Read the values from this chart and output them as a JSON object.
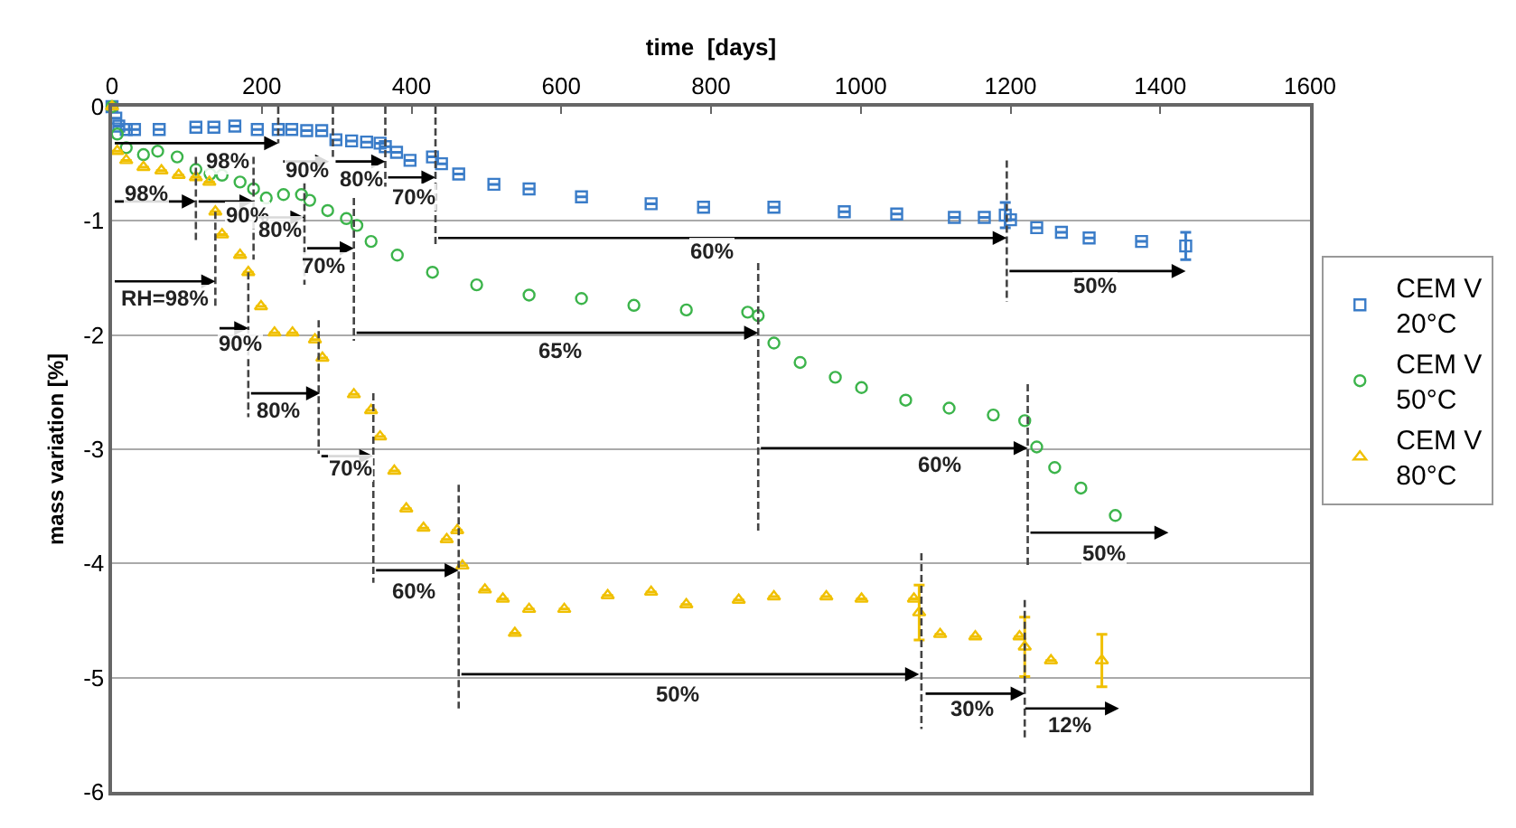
{
  "chart_data": {
    "type": "scatter",
    "xlabel": "time  [days]",
    "ylabel": "mass variation [%]",
    "xlim": [
      0,
      1600
    ],
    "xticks": [
      0,
      200,
      400,
      600,
      800,
      1000,
      1200,
      1400,
      1600
    ],
    "ylim": [
      -6,
      0
    ],
    "yticks": [
      -6,
      -5,
      -4,
      -3,
      -2,
      -1,
      0
    ],
    "grid": "y",
    "legend": "right",
    "series": [
      {
        "name": "CEM V\n20°C",
        "marker": "square",
        "color": "#3a7cc8",
        "x": [
          0,
          5,
          9,
          19,
          30,
          63,
          112,
          136,
          164,
          194,
          222,
          240,
          260,
          280,
          299,
          320,
          340,
          358,
          365,
          380,
          398,
          428,
          440,
          463,
          510,
          557,
          627,
          720,
          790,
          884,
          978,
          1048,
          1125,
          1165,
          1193,
          1200,
          1235,
          1268,
          1305,
          1375,
          1434
        ],
        "values": [
          0,
          -0.1,
          -0.17,
          -0.2,
          -0.2,
          -0.2,
          -0.18,
          -0.18,
          -0.17,
          -0.2,
          -0.2,
          -0.2,
          -0.21,
          -0.21,
          -0.29,
          -0.3,
          -0.31,
          -0.32,
          -0.35,
          -0.4,
          -0.47,
          -0.44,
          -0.5,
          -0.59,
          -0.68,
          -0.72,
          -0.79,
          -0.85,
          -0.88,
          -0.88,
          -0.92,
          -0.94,
          -0.97,
          -0.97,
          -0.95,
          -0.99,
          -1.06,
          -1.1,
          -1.15,
          -1.18,
          -1.22
        ],
        "errors": [
          null,
          null,
          null,
          null,
          null,
          null,
          null,
          null,
          null,
          null,
          null,
          null,
          null,
          null,
          null,
          null,
          null,
          null,
          null,
          null,
          null,
          null,
          null,
          null,
          null,
          null,
          null,
          null,
          null,
          null,
          null,
          null,
          null,
          null,
          0.11,
          null,
          null,
          null,
          null,
          null,
          0.12
        ]
      },
      {
        "name": "CEM V\n50°C",
        "marker": "circle",
        "color": "#3cb44b",
        "x": [
          0,
          7,
          19,
          42,
          61,
          87,
          112,
          131,
          147,
          171,
          189,
          206,
          229,
          253,
          264,
          288,
          313,
          327,
          346,
          381,
          428,
          487,
          557,
          627,
          697,
          767,
          849,
          863,
          884,
          919,
          966,
          1001,
          1060,
          1118,
          1177,
          1219,
          1235,
          1259,
          1294,
          1340
        ],
        "values": [
          0,
          -0.24,
          -0.36,
          -0.42,
          -0.39,
          -0.44,
          -0.55,
          -0.59,
          -0.6,
          -0.66,
          -0.72,
          -0.8,
          -0.77,
          -0.77,
          -0.82,
          -0.91,
          -0.98,
          -1.04,
          -1.18,
          -1.3,
          -1.45,
          -1.56,
          -1.65,
          -1.68,
          -1.74,
          -1.78,
          -1.8,
          -1.83,
          -2.07,
          -2.24,
          -2.37,
          -2.46,
          -2.57,
          -2.64,
          -2.7,
          -2.75,
          -2.98,
          -3.16,
          -3.34,
          -3.58
        ]
      },
      {
        "name": "CEM V\n80°C",
        "marker": "triangle",
        "color": "#f0c000",
        "x": [
          0,
          7,
          19,
          42,
          66,
          89,
          112,
          130,
          138,
          147,
          171,
          182,
          199,
          217,
          241,
          271,
          281,
          323,
          346,
          358,
          377,
          393,
          416,
          447,
          461,
          468,
          498,
          522,
          538,
          557,
          604,
          662,
          720,
          767,
          837,
          884,
          954,
          1001,
          1071,
          1078,
          1106,
          1153,
          1212,
          1219,
          1254,
          1322
        ],
        "values": [
          0,
          -0.39,
          -0.47,
          -0.53,
          -0.56,
          -0.6,
          -0.62,
          -0.66,
          -0.92,
          -1.12,
          -1.3,
          -1.45,
          -1.75,
          -1.98,
          -1.98,
          -2.04,
          -2.2,
          -2.52,
          -2.66,
          -2.89,
          -3.19,
          -3.52,
          -3.69,
          -3.79,
          -3.71,
          -4.02,
          -4.23,
          -4.31,
          -4.61,
          -4.4,
          -4.4,
          -4.28,
          -4.25,
          -4.36,
          -4.32,
          -4.29,
          -4.29,
          -4.31,
          -4.31,
          -4.43,
          -4.62,
          -4.64,
          -4.64,
          -4.73,
          -4.85,
          -4.85
        ],
        "errors": [
          null,
          null,
          null,
          null,
          null,
          null,
          null,
          null,
          null,
          null,
          null,
          null,
          null,
          null,
          null,
          null,
          null,
          null,
          null,
          null,
          null,
          null,
          null,
          null,
          null,
          null,
          null,
          null,
          null,
          null,
          null,
          null,
          null,
          null,
          null,
          null,
          null,
          null,
          null,
          0.24,
          null,
          null,
          null,
          0.26,
          null,
          0.23
        ]
      },
      {
        "type": "line",
        "line_style": "dashed",
        "color": "#444444",
        "x": [
          222,
          222
        ],
        "values": [
          0,
          -0.32
        ]
      },
      {
        "type": "line",
        "line_style": "dashed",
        "color": "#444444",
        "x": [
          295,
          295
        ],
        "values": [
          0,
          -0.44
        ]
      },
      {
        "type": "line",
        "line_style": "dashed",
        "color": "#444444",
        "x": [
          365,
          365
        ],
        "values": [
          0,
          -0.7
        ]
      },
      {
        "type": "line",
        "line_style": "dashed",
        "color": "#444444",
        "x": [
          432,
          432
        ],
        "values": [
          0,
          -1.22
        ]
      },
      {
        "type": "line",
        "line_style": "dashed",
        "color": "#444444",
        "x": [
          1195,
          1195
        ],
        "values": [
          -0.47,
          -1.71
        ]
      },
      {
        "type": "line",
        "line_style": "dashed",
        "color": "#444444",
        "x": [
          112,
          112
        ],
        "values": [
          -0.44,
          -1.18
        ]
      },
      {
        "type": "line",
        "line_style": "dashed",
        "color": "#444444",
        "x": [
          189,
          189
        ],
        "values": [
          -0.44,
          -1.34
        ]
      },
      {
        "type": "line",
        "line_style": "dashed",
        "color": "#444444",
        "x": [
          257,
          257
        ],
        "values": [
          -0.66,
          -1.56
        ]
      },
      {
        "type": "line",
        "line_style": "dashed",
        "color": "#444444",
        "x": [
          323,
          323
        ],
        "values": [
          -0.8,
          -2.05
        ]
      },
      {
        "type": "line",
        "line_style": "dashed",
        "color": "#444444",
        "x": [
          863,
          863
        ],
        "values": [
          -1.37,
          -3.72
        ]
      },
      {
        "type": "line",
        "line_style": "dashed",
        "color": "#444444",
        "x": [
          1223,
          1223
        ],
        "values": [
          -2.43,
          -4.02
        ]
      },
      {
        "type": "line",
        "line_style": "dashed",
        "color": "#444444",
        "x": [
          138,
          138
        ],
        "values": [
          -0.92,
          -1.75
        ]
      },
      {
        "type": "line",
        "line_style": "dashed",
        "color": "#444444",
        "x": [
          182,
          182
        ],
        "values": [
          -1.45,
          -2.72
        ]
      },
      {
        "type": "line",
        "line_style": "dashed",
        "color": "#444444",
        "x": [
          276,
          276
        ],
        "values": [
          -1.87,
          -3.04
        ]
      },
      {
        "type": "line",
        "line_style": "dashed",
        "color": "#444444",
        "x": [
          349,
          349
        ],
        "values": [
          -2.51,
          -4.17
        ]
      },
      {
        "type": "line",
        "line_style": "dashed",
        "color": "#444444",
        "x": [
          463,
          463
        ],
        "values": [
          -3.31,
          -5.27
        ]
      },
      {
        "type": "line",
        "line_style": "dashed",
        "color": "#444444",
        "x": [
          1081,
          1081
        ],
        "values": [
          -3.91,
          -5.45
        ]
      },
      {
        "type": "line",
        "line_style": "dashed",
        "color": "#444444",
        "x": [
          1219,
          1219
        ],
        "values": [
          -4.32,
          -5.53
        ]
      }
    ],
    "annotations": [
      {
        "text": "98%",
        "x": 222,
        "y": -0.32
      },
      {
        "text": "90%",
        "x": 290,
        "y": -0.48
      },
      {
        "text": "80%",
        "x": 365,
        "y": -0.48
      },
      {
        "text": "70%",
        "x": 432,
        "y": -0.62
      },
      "60%",
      "50%",
      {
        "text": "98%",
        "x": 112,
        "y": -0.83
      },
      {
        "text": "90%",
        "x": 189,
        "y": -0.83
      },
      {
        "text": "80%",
        "x": 257,
        "y": -0.97
      },
      {
        "text": "70%",
        "x": 323,
        "y": -1.24
      },
      "65%",
      "60%",
      "50%",
      {
        "text": "RH=98%",
        "x": 138,
        "y": -1.53
      },
      {
        "text": "90%",
        "x": 182,
        "y": -1.94
      },
      {
        "text": "80%",
        "x": 278,
        "y": -2.51
      },
      {
        "text": "70%",
        "x": 349,
        "y": -3.06
      },
      {
        "text": "60%",
        "x": 463,
        "y": -4.06
      },
      "50%",
      {
        "text": "30%",
        "x": 1219,
        "y": -5.14
      },
      "12%"
    ]
  }
}
